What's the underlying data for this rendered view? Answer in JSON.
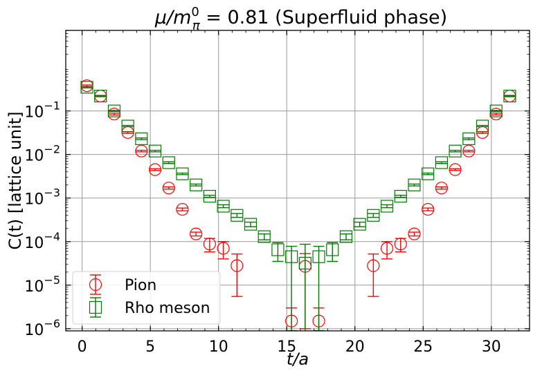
{
  "chart_data": {
    "type": "scatter",
    "title": {
      "math_prefix": "μ/m",
      "math_sup": "0",
      "math_sub": "π",
      "rest": " = 0.81 (Superfluid phase)"
    },
    "xlabel": "t/a",
    "ylabel": "C(t) [lattice unit]",
    "xlim": [
      -1.2,
      32.8
    ],
    "ylim_log10": [
      -6.05,
      0.85
    ],
    "yscale": "log",
    "grid": true,
    "legend_position": "bottom-left",
    "x_ticks": [
      0,
      5,
      10,
      15,
      20,
      25,
      30
    ],
    "x_tick_labels": [
      "0",
      "5",
      "10",
      "15",
      "20",
      "25",
      "30"
    ],
    "y_ticks_exp": [
      -6,
      -5,
      -4,
      -3,
      -2,
      -1
    ],
    "y_tick_labels": [
      {
        "base": "10",
        "exp": "−6"
      },
      {
        "base": "10",
        "exp": "−5"
      },
      {
        "base": "10",
        "exp": "−4"
      },
      {
        "base": "10",
        "exp": "−3"
      },
      {
        "base": "10",
        "exp": "−2"
      },
      {
        "base": "10",
        "exp": "−1"
      }
    ],
    "series": [
      {
        "name": "Pion",
        "marker": "circle",
        "color": "#ff0000",
        "x_offset": 0.35,
        "t": [
          0,
          1,
          2,
          3,
          4,
          5,
          6,
          7,
          8,
          9,
          10,
          11,
          15,
          16,
          17,
          21,
          22,
          23,
          24,
          25,
          26,
          27,
          28,
          29,
          30,
          31
        ],
        "y": [
          0.38,
          0.22,
          0.085,
          0.032,
          0.012,
          0.0045,
          0.0017,
          0.00055,
          0.00015,
          8.8e-05,
          7e-05,
          2.8e-05,
          1.5e-06,
          2.7e-05,
          1.5e-06,
          2.8e-05,
          7e-05,
          8.8e-05,
          0.00015,
          0.00055,
          0.0017,
          0.0045,
          0.012,
          0.032,
          0.085,
          0.22
        ],
        "yerr_low": [
          0.015,
          0.008,
          0.004,
          0.0015,
          0.0005,
          0.0002,
          0.0001,
          4e-05,
          1.5e-05,
          3e-05,
          3e-05,
          2.25e-05,
          1.5e-06,
          2.6e-05,
          1.5e-06,
          2.25e-05,
          3e-05,
          3e-05,
          1.5e-05,
          4e-05,
          0.0001,
          0.0002,
          0.0005,
          0.0015,
          0.004,
          0.008
        ],
        "yerr_high": [
          0.015,
          0.008,
          0.004,
          0.0015,
          0.0005,
          0.0002,
          0.0001,
          4e-05,
          1.5e-05,
          3e-05,
          3e-05,
          2.4e-05,
          1.5e-06,
          2.6e-05,
          1.5e-06,
          2.4e-05,
          3e-05,
          3e-05,
          1.5e-05,
          4e-05,
          0.0001,
          0.0002,
          0.0005,
          0.0015,
          0.004,
          0.008
        ]
      },
      {
        "name": "Rho meson",
        "marker": "square",
        "color": "#007700",
        "x_offset": 0.35,
        "t": [
          0,
          1,
          2,
          3,
          4,
          5,
          6,
          7,
          8,
          9,
          10,
          11,
          12,
          13,
          14,
          15,
          16,
          17,
          18,
          19,
          20,
          21,
          22,
          23,
          24,
          25,
          26,
          27,
          28,
          29,
          30,
          31
        ],
        "y": [
          0.35,
          0.22,
          0.1,
          0.045,
          0.023,
          0.012,
          0.0065,
          0.0036,
          0.002,
          0.0011,
          0.00065,
          0.0004,
          0.00025,
          0.00013,
          6.5e-05,
          4.5e-05,
          3.2e-05,
          4.5e-05,
          6.5e-05,
          0.00013,
          0.00025,
          0.0004,
          0.00065,
          0.0011,
          0.002,
          0.0036,
          0.0065,
          0.012,
          0.023,
          0.045,
          0.1,
          0.22
        ],
        "yerr_low": [
          0.01,
          0.006,
          0.003,
          0.0015,
          0.001,
          0.0005,
          0.0003,
          0.00015,
          0.0001,
          6e-05,
          5e-05,
          4e-05,
          3e-05,
          2e-05,
          3e-05,
          4.41e-05,
          3.18e-05,
          4.41e-05,
          3e-05,
          2e-05,
          3e-05,
          4e-05,
          5e-05,
          6e-05,
          0.0001,
          0.00015,
          0.0003,
          0.0005,
          0.001,
          0.0015,
          0.003,
          0.006
        ],
        "yerr_high": [
          0.01,
          0.006,
          0.003,
          0.0015,
          0.001,
          0.0005,
          0.0003,
          0.00015,
          0.0001,
          6e-05,
          5e-05,
          4e-05,
          3e-05,
          2e-05,
          3e-05,
          3.3e-05,
          5.5e-05,
          3.3e-05,
          3e-05,
          2e-05,
          3e-05,
          4e-05,
          5e-05,
          6e-05,
          0.0001,
          0.00015,
          0.0003,
          0.0005,
          0.001,
          0.0015,
          0.003,
          0.006
        ]
      }
    ]
  }
}
